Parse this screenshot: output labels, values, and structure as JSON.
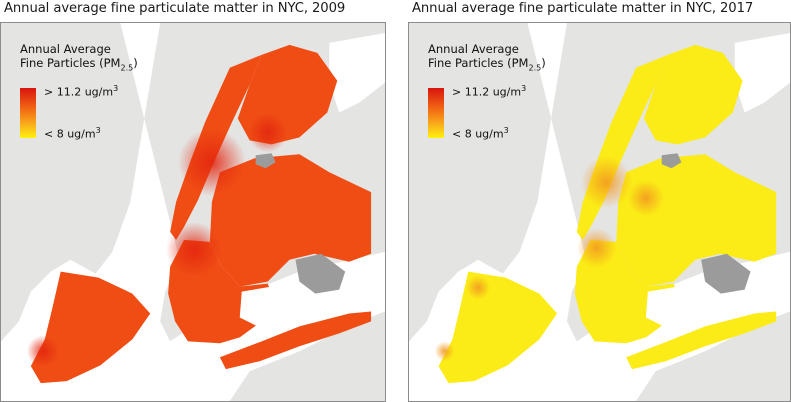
{
  "panels": [
    {
      "title": "Annual average fine particulate matter in NYC, 2009",
      "year": "2009",
      "fill_color": "#f04d14",
      "hot_color": "#e3260f",
      "legend": {
        "title_line1": "Annual Average",
        "title_line2_prefix": "Fine Particles (PM",
        "title_line2_sub": "2.5",
        "title_line2_suffix": ")",
        "high_label": "> 11.2 ug/m",
        "low_label": "< 8 ug/m",
        "unit_sup": "3"
      }
    },
    {
      "title": "Annual average fine particulate matter in NYC, 2017",
      "year": "2017",
      "fill_color": "#fbeb16",
      "hot_color": "#f39a21",
      "legend": {
        "title_line1": "Annual Average",
        "title_line2_prefix": "Fine Particles (PM",
        "title_line2_sub": "2.5",
        "title_line2_suffix": ")",
        "high_label": "> 11.2 ug/m",
        "low_label": "< 8 ug/m",
        "unit_sup": "3"
      }
    }
  ],
  "colors": {
    "land_outside": "#e4e4e2",
    "water": "#ffffff",
    "airport": "#9b9b9b",
    "legend_high": "#d8140f",
    "legend_low": "#fff111"
  }
}
